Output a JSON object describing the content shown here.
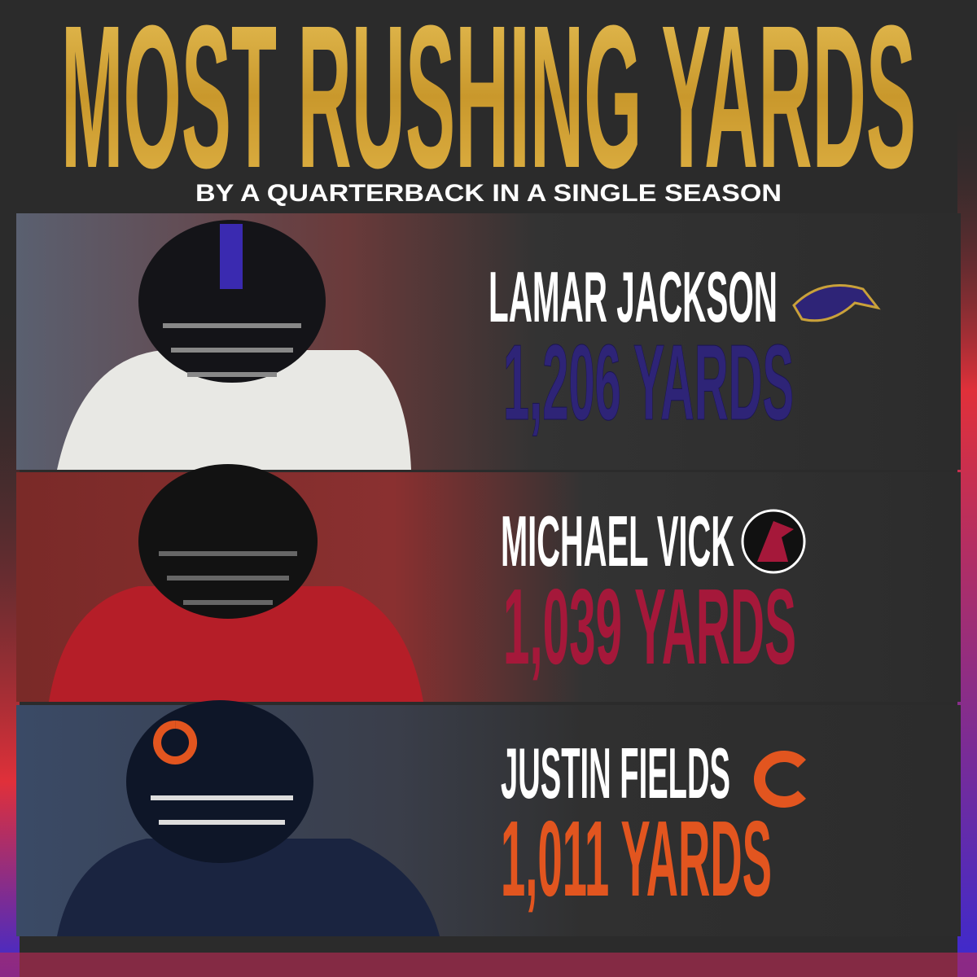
{
  "header": {
    "title": "MOST RUSHING YARDS",
    "subtitle": "BY A QUARTERBACK IN A SINGLE SEASON"
  },
  "players": [
    {
      "name": "LAMAR JACKSON",
      "yards": "1,206 YARDS"
    },
    {
      "name": "MICHAEL VICK",
      "yards": "1,039 YARDS"
    },
    {
      "name": "JUSTIN FIELDS",
      "yards": "1,011 YARDS"
    }
  ]
}
